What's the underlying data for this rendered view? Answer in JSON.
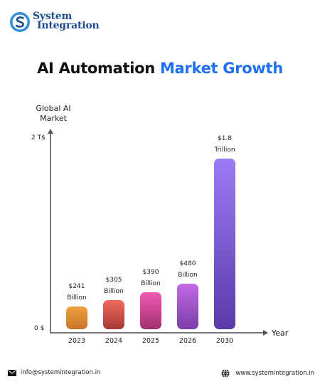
{
  "brand": {
    "line1": "System",
    "line2": "Integration"
  },
  "title": {
    "part1": "AI Automation",
    "part2": "Market Growth",
    "accent_color": "#1f6ff0"
  },
  "chart_data": {
    "type": "bar",
    "title": "AI Automation Market Growth",
    "ylabel": "Global AI Market",
    "xlabel": "Year",
    "yticks": [
      "2 T$",
      "0 $"
    ],
    "categories": [
      "2023",
      "2024",
      "2025",
      "2026",
      "2030"
    ],
    "values": [
      241,
      305,
      390,
      480,
      1800
    ],
    "units": "billion USD",
    "data_labels": [
      [
        "$241",
        "Billion"
      ],
      [
        "$305",
        "Billion"
      ],
      [
        "$390",
        "Billion"
      ],
      [
        "$480",
        "Billion"
      ],
      [
        "$1.8",
        "Trillion"
      ]
    ],
    "bar_gradients": [
      [
        "#f0a040",
        "#c87428"
      ],
      [
        "#f06a5c",
        "#a83838"
      ],
      [
        "#f05ab4",
        "#a0306e"
      ],
      [
        "#c26ae6",
        "#7a3ea8"
      ],
      [
        "#9b7bf5",
        "#5a3aa8"
      ]
    ],
    "grid": false,
    "legend": "none"
  },
  "footer": {
    "email": "info@systemintegration.in",
    "website": "www.systemintegration.in"
  }
}
